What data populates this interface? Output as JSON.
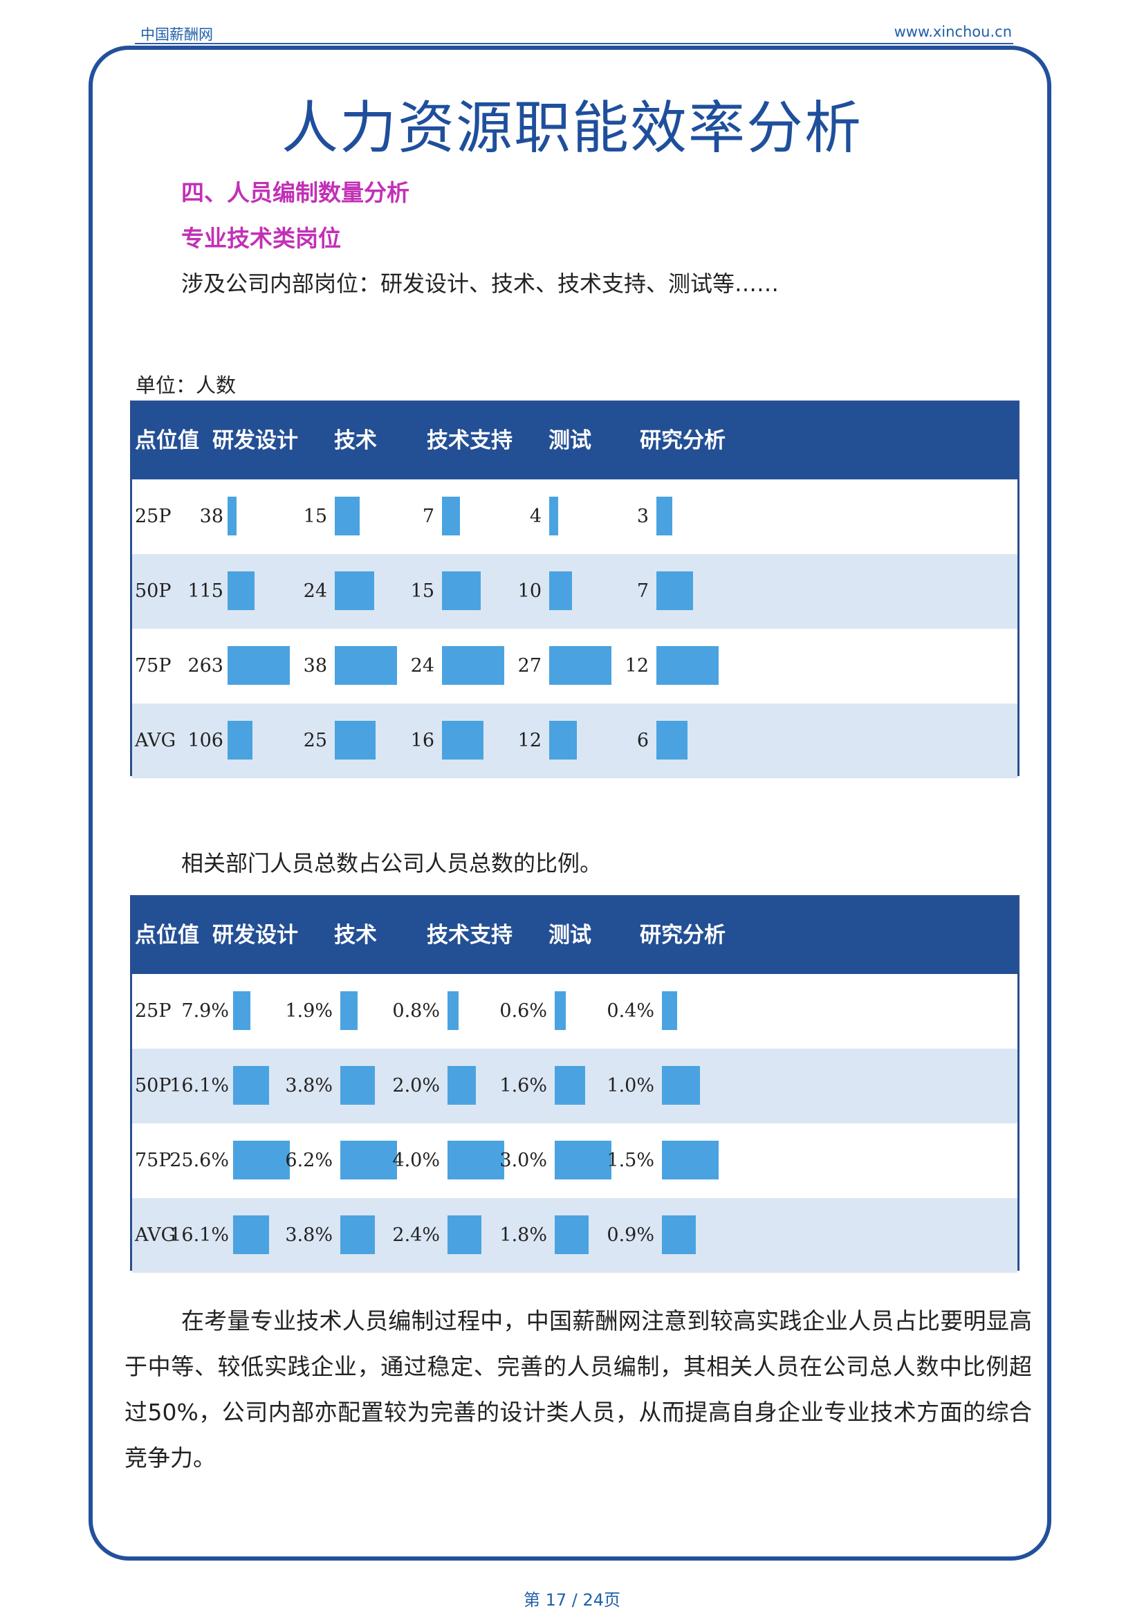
{
  "header": {
    "site_name": "中国薪酬网",
    "site_url": "www.xinchou.cn"
  },
  "title": "人力资源职能效率分析",
  "section_heading": "四、人员编制数量分析",
  "subsection_heading": "专业技术类岗位",
  "scope_text": "涉及公司内部岗位：研发设计、技术、技术支持、测试等……",
  "unit_label": "单位：人数",
  "ratio_text": "相关部门人员总数占公司人员总数的比例。",
  "colors": {
    "header_bg": "#234f94",
    "bar": "#4aa3e0",
    "alt_row": "#dbe6f4",
    "frame": "#23509c"
  },
  "table_headcount": {
    "headers": [
      "点位值",
      "研发设计",
      "技术",
      "技术支持",
      "测试",
      "研究分析"
    ],
    "rows": [
      {
        "label": "25P",
        "values": [
          "38",
          "15",
          "7",
          "4",
          "3"
        ],
        "levels": [
          38,
          15,
          7,
          4,
          3
        ]
      },
      {
        "label": "50P",
        "values": [
          "115",
          "24",
          "15",
          "10",
          "7"
        ],
        "levels": [
          115,
          24,
          15,
          10,
          7
        ]
      },
      {
        "label": "75P",
        "values": [
          "263",
          "38",
          "24",
          "27",
          "12"
        ],
        "levels": [
          263,
          38,
          24,
          27,
          12
        ]
      },
      {
        "label": "AVG",
        "values": [
          "106",
          "25",
          "16",
          "12",
          "6"
        ],
        "levels": [
          106,
          25,
          16,
          12,
          6
        ]
      }
    ]
  },
  "table_ratio": {
    "headers": [
      "点位值",
      "研发设计",
      "技术",
      "技术支持",
      "测试",
      "研究分析"
    ],
    "rows": [
      {
        "label": "25P",
        "values": [
          "7.9%",
          "1.9%",
          "0.8%",
          "0.6%",
          "0.4%"
        ],
        "levels": [
          7.9,
          1.9,
          0.8,
          0.6,
          0.4
        ]
      },
      {
        "label": "50P",
        "values": [
          "16.1%",
          "3.8%",
          "2.0%",
          "1.6%",
          "1.0%"
        ],
        "levels": [
          16.1,
          3.8,
          2.0,
          1.6,
          1.0
        ]
      },
      {
        "label": "75P",
        "values": [
          "25.6%",
          "6.2%",
          "4.0%",
          "3.0%",
          "1.5%"
        ],
        "levels": [
          25.6,
          6.2,
          4.0,
          3.0,
          1.5
        ]
      },
      {
        "label": "AVG",
        "values": [
          "16.1%",
          "3.8%",
          "2.4%",
          "1.8%",
          "0.9%"
        ],
        "levels": [
          16.1,
          3.8,
          2.4,
          1.8,
          0.9
        ]
      }
    ]
  },
  "body_paragraph": "在考量专业技术人员编制过程中，中国薪酬网注意到较高实践企业人员占比要明显高于中等、较低实践企业，通过稳定、完善的人员编制，其相关人员在公司总人数中比例超过50%，公司内部亦配置较为完善的设计类人员，从而提高自身企业专业技术方面的综合竞争力。",
  "footer": {
    "page_label": "第 17 / 24页"
  }
}
